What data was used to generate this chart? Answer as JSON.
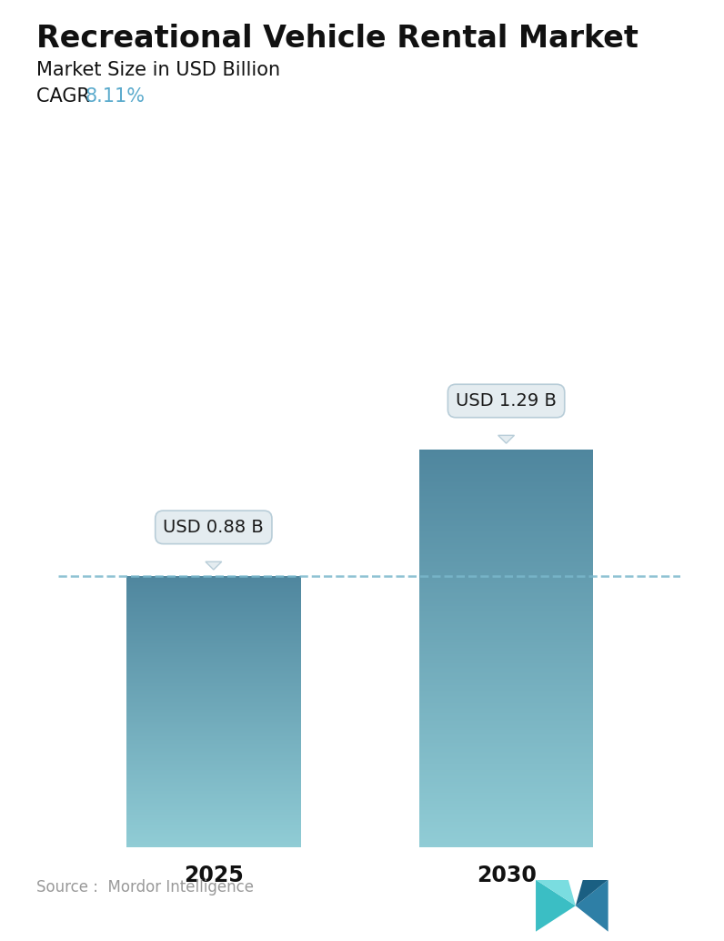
{
  "title": "Recreational Vehicle Rental Market",
  "subtitle": "Market Size in USD Billion",
  "cagr_label": "CAGR ",
  "cagr_value": "8.11%",
  "cagr_color": "#5aaacc",
  "categories": [
    "2025",
    "2030"
  ],
  "values": [
    0.88,
    1.29
  ],
  "bar_labels": [
    "USD 0.88 B",
    "USD 1.29 B"
  ],
  "bar_color_top": "#4a7f9a",
  "bar_color_bottom": "#8ecdd8",
  "dashed_line_color": "#7ab8cc",
  "source_text": "Source :  Mordor Intelligence",
  "background_color": "#ffffff",
  "title_fontsize": 24,
  "subtitle_fontsize": 15,
  "cagr_fontsize": 15,
  "tick_fontsize": 17,
  "label_fontsize": 14,
  "source_fontsize": 12
}
